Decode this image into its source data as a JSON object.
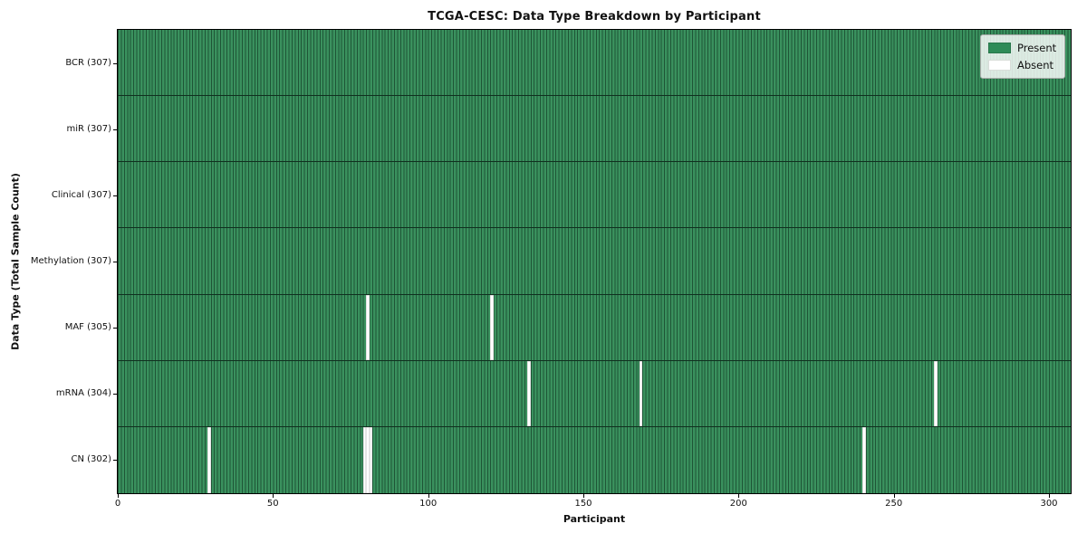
{
  "chart_data": {
    "type": "heatmap",
    "title": "TCGA-CESC: Data Type Breakdown by Participant",
    "xlabel": "Participant",
    "ylabel": "Data Type (Total Sample Count)",
    "n_participants": 307,
    "x_ticks": [
      0,
      50,
      100,
      150,
      200,
      250,
      300
    ],
    "grid": "cell-edges",
    "colors": {
      "present": "#2e8b57",
      "present_fill": "#3a915e",
      "cell_edge": "#1e5536",
      "row_divider": "#10301f",
      "absent": "#ffffff"
    },
    "legend": {
      "position": "upper right",
      "items": [
        {
          "label": "Present",
          "color": "#2e8b57"
        },
        {
          "label": "Absent",
          "color": "#ffffff"
        }
      ]
    },
    "rows": [
      {
        "data_type": "BCR",
        "label": "BCR (307)",
        "total": 307,
        "absent_participants": []
      },
      {
        "data_type": "miR",
        "label": "miR (307)",
        "total": 307,
        "absent_participants": []
      },
      {
        "data_type": "Clinical",
        "label": "Clinical (307)",
        "total": 307,
        "absent_participants": []
      },
      {
        "data_type": "Methylation",
        "label": "Methylation (307)",
        "total": 307,
        "absent_participants": []
      },
      {
        "data_type": "MAF",
        "label": "MAF (305)",
        "total": 305,
        "absent_participants": [
          80,
          120
        ]
      },
      {
        "data_type": "mRNA",
        "label": "mRNA (304)",
        "total": 304,
        "absent_participants": [
          132,
          168,
          263
        ]
      },
      {
        "data_type": "CN",
        "label": "CN (302)",
        "total": 302,
        "absent_participants": [
          29,
          79,
          80,
          81,
          240
        ]
      }
    ]
  }
}
